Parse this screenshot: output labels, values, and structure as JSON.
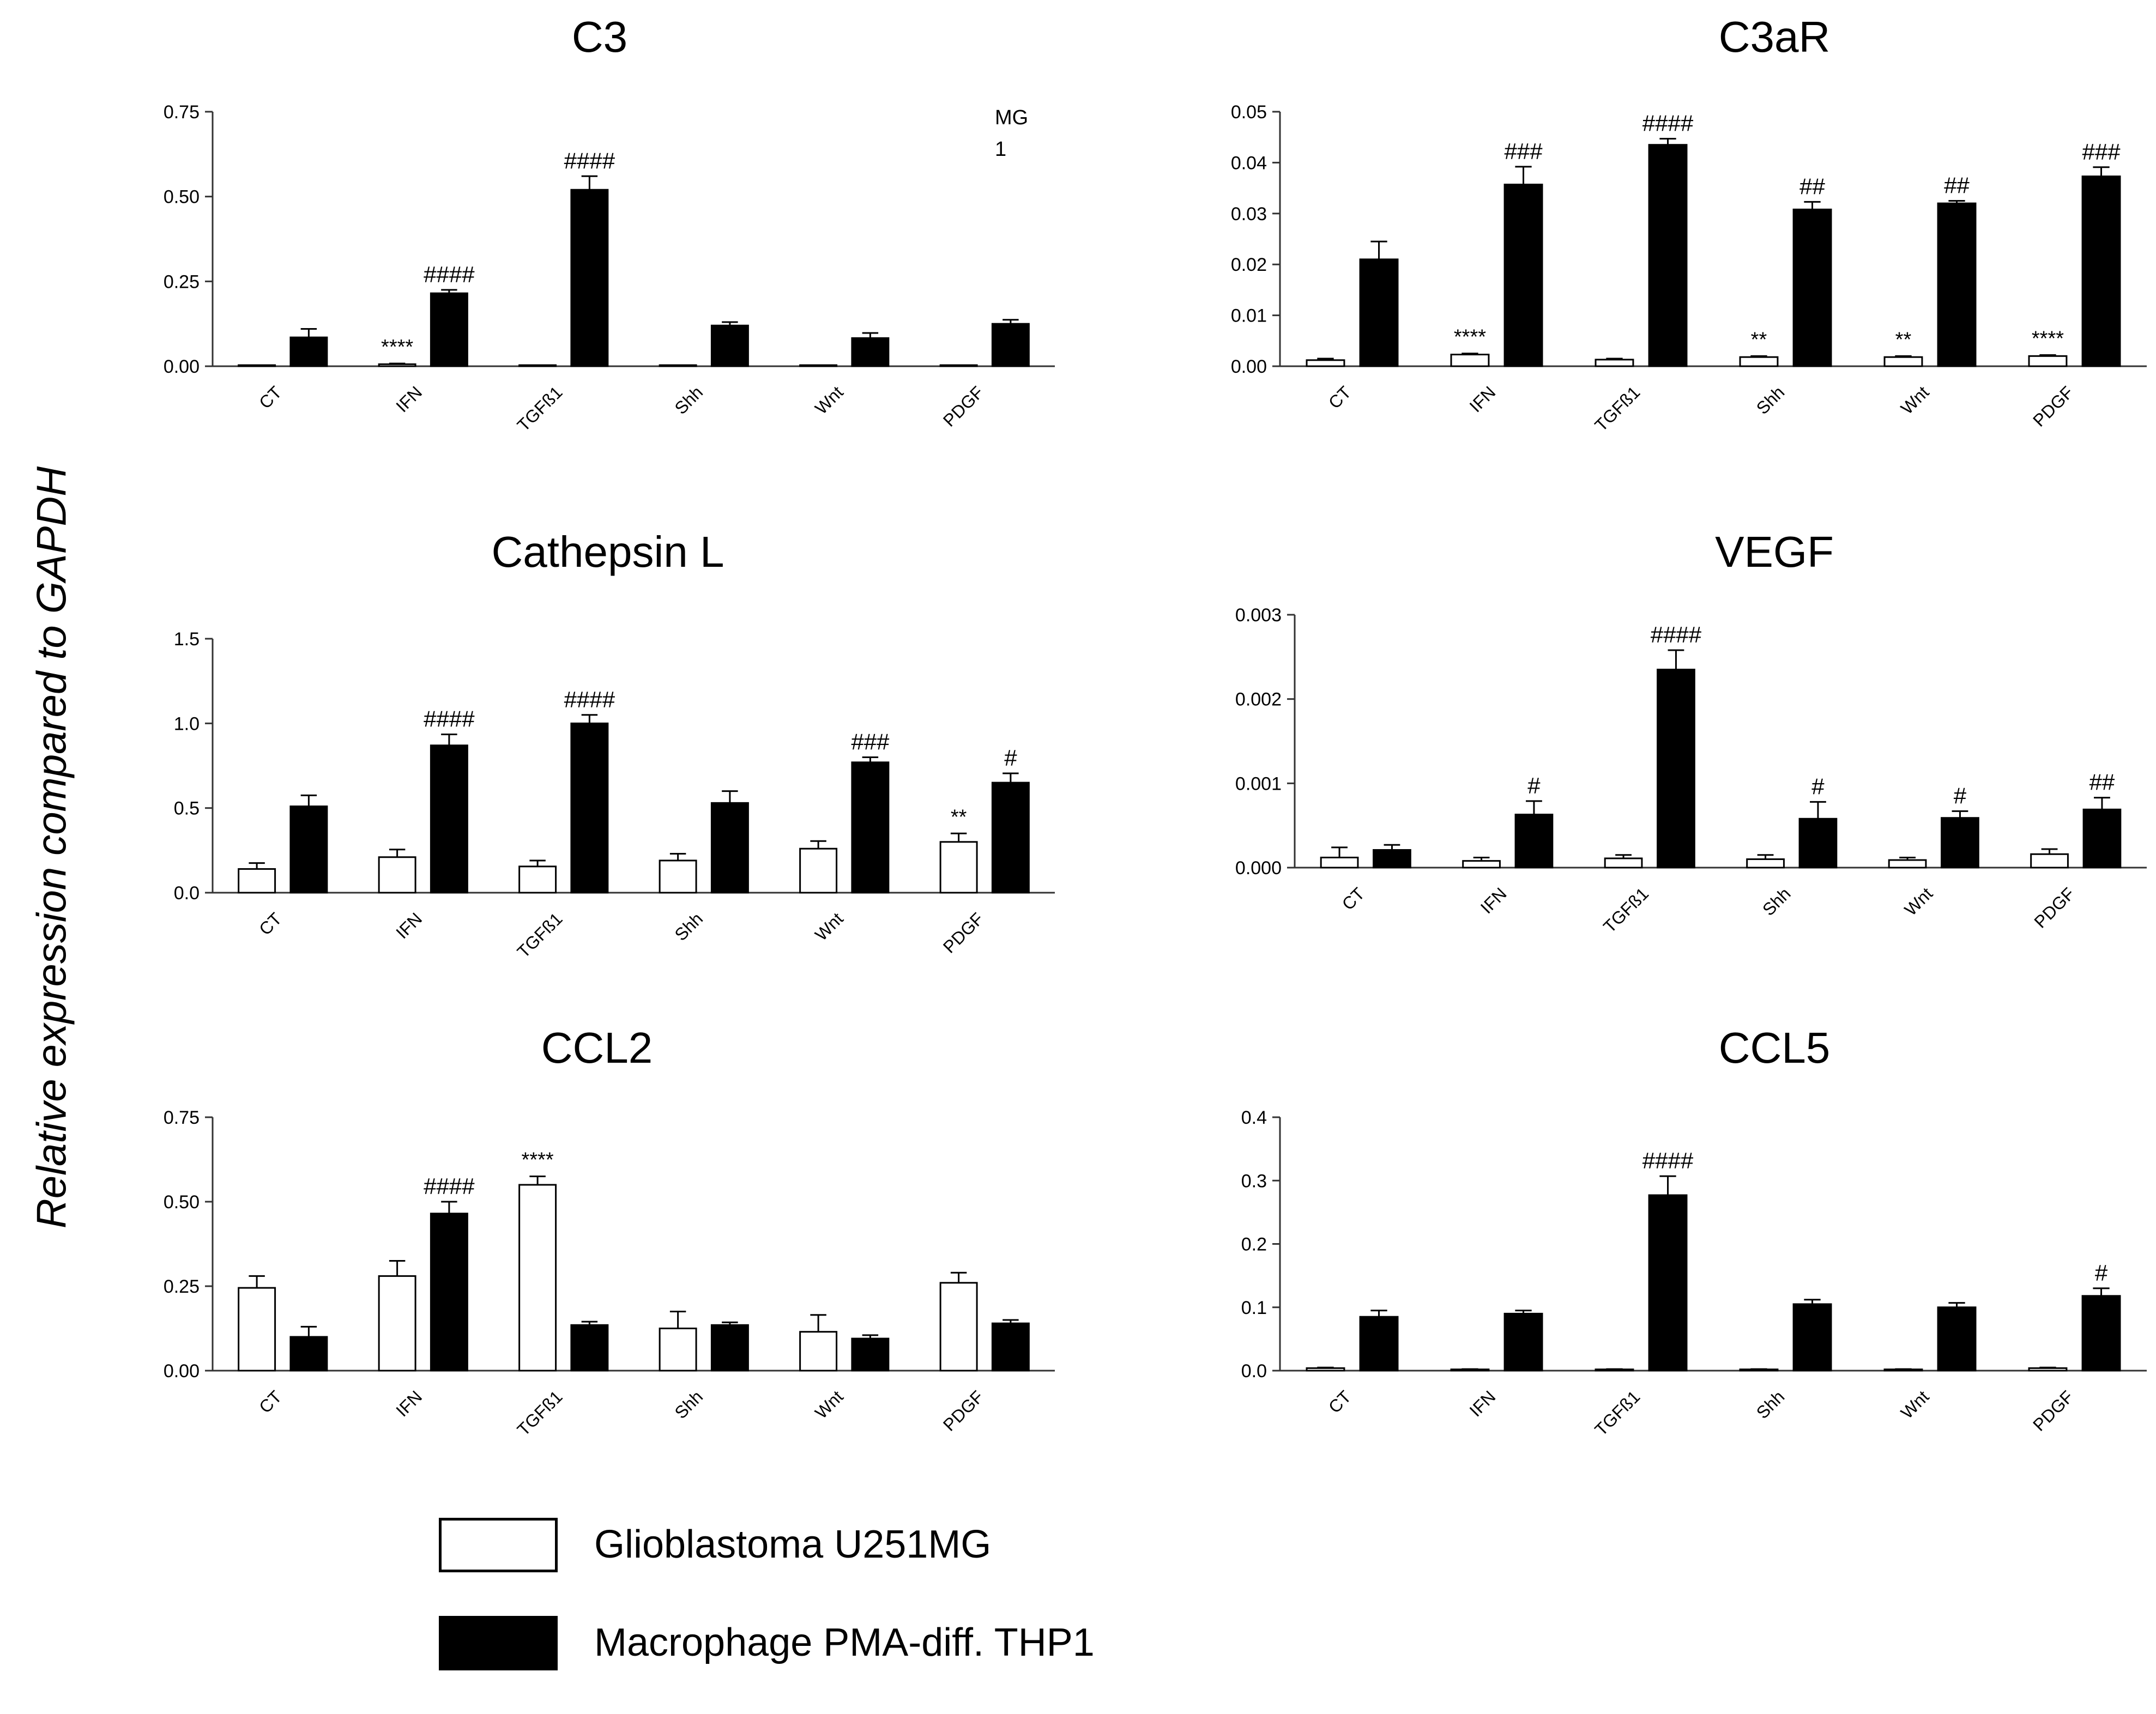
{
  "figure": {
    "ylabel": "Relative expression compared to GAPDH",
    "legend": [
      {
        "label": "Glioblastoma U251MG",
        "color": "#ffffff"
      },
      {
        "label": "Macrophage PMA-diff. THP1",
        "color": "#000000"
      }
    ]
  },
  "chart_data": [
    {
      "type": "bar",
      "title": "C3",
      "categories": [
        "CT",
        "IFN",
        "TGFß1",
        "Shh",
        "Wnt",
        "PDGF"
      ],
      "ylim": [
        0,
        0.75
      ],
      "yticks": [
        "0.00",
        "0.25",
        "0.50",
        "0.75"
      ],
      "yticks_values": [
        0,
        0.25,
        0.5,
        0.75
      ],
      "annotation": [
        "MG",
        "1"
      ],
      "series": [
        {
          "name": "Glioblastoma U251MG",
          "values": [
            0.002,
            0.006,
            0.002,
            0.002,
            0.002,
            0.002
          ],
          "errors": [
            0.0,
            0.002,
            0.0,
            0.0,
            0.0,
            0.0
          ],
          "labels": [
            "",
            "****",
            "",
            "",
            "",
            ""
          ]
        },
        {
          "name": "Macrophage PMA-diff. THP1",
          "values": [
            0.085,
            0.215,
            0.52,
            0.12,
            0.083,
            0.125
          ],
          "errors": [
            0.025,
            0.01,
            0.04,
            0.01,
            0.015,
            0.012
          ],
          "labels": [
            "",
            "####",
            "####",
            "",
            "",
            ""
          ]
        }
      ]
    },
    {
      "type": "bar",
      "title": "C3aR",
      "categories": [
        "CT",
        "IFN",
        "TGFß1",
        "Shh",
        "Wnt",
        "PDGF"
      ],
      "ylim": [
        0,
        0.05
      ],
      "yticks": [
        "0.00",
        "0.01",
        "0.02",
        "0.03",
        "0.04",
        "0.05"
      ],
      "yticks_values": [
        0,
        0.01,
        0.02,
        0.03,
        0.04,
        0.05
      ],
      "series": [
        {
          "name": "Glioblastoma U251MG",
          "values": [
            0.0012,
            0.0023,
            0.0013,
            0.0018,
            0.0018,
            0.002
          ],
          "errors": [
            0.0003,
            0.0002,
            0.0002,
            0.0002,
            0.0002,
            0.0002
          ],
          "labels": [
            "",
            "****",
            "",
            "**",
            "**",
            "****"
          ]
        },
        {
          "name": "Macrophage PMA-diff. THP1",
          "values": [
            0.021,
            0.0357,
            0.0435,
            0.0308,
            0.032,
            0.0373
          ],
          "errors": [
            0.0035,
            0.0035,
            0.0012,
            0.0015,
            0.0005,
            0.0018
          ],
          "labels": [
            "",
            "###",
            "####",
            "##",
            "##",
            "###"
          ]
        }
      ]
    },
    {
      "type": "bar",
      "title": "Cathepsin L",
      "categories": [
        "CT",
        "IFN",
        "TGFß1",
        "Shh",
        "Wnt",
        "PDGF"
      ],
      "ylim": [
        0,
        1.5
      ],
      "yticks": [
        "0.0",
        "0.5",
        "1.0",
        "1.5"
      ],
      "yticks_values": [
        0,
        0.5,
        1.0,
        1.5
      ],
      "series": [
        {
          "name": "Glioblastoma U251MG",
          "values": [
            0.14,
            0.21,
            0.155,
            0.19,
            0.26,
            0.3
          ],
          "errors": [
            0.035,
            0.045,
            0.035,
            0.04,
            0.045,
            0.05
          ],
          "labels": [
            "",
            "",
            "",
            "",
            "",
            "**"
          ]
        },
        {
          "name": "Macrophage PMA-diff. THP1",
          "values": [
            0.51,
            0.87,
            1.0,
            0.53,
            0.77,
            0.65
          ],
          "errors": [
            0.065,
            0.065,
            0.05,
            0.07,
            0.03,
            0.055
          ],
          "labels": [
            "",
            "####",
            "####",
            "",
            "###",
            "#"
          ]
        }
      ]
    },
    {
      "type": "bar",
      "title": "VEGF",
      "categories": [
        "CT",
        "IFN",
        "TGFß1",
        "Shh",
        "Wnt",
        "PDGF"
      ],
      "ylim": [
        0,
        0.003
      ],
      "yticks": [
        "0.000",
        "0.001",
        "0.002",
        "0.003"
      ],
      "yticks_values": [
        0,
        0.001,
        0.002,
        0.003
      ],
      "series": [
        {
          "name": "Glioblastoma U251MG",
          "values": [
            0.00012,
            8e-05,
            0.00011,
            0.0001,
            9e-05,
            0.00016
          ],
          "errors": [
            0.00012,
            4e-05,
            4e-05,
            5e-05,
            3e-05,
            6e-05
          ],
          "labels": [
            "",
            "",
            "",
            "",
            "",
            ""
          ]
        },
        {
          "name": "Macrophage PMA-diff. THP1",
          "values": [
            0.00021,
            0.00063,
            0.00235,
            0.00058,
            0.00059,
            0.00069
          ],
          "errors": [
            6e-05,
            0.00016,
            0.00023,
            0.0002,
            8e-05,
            0.00014
          ],
          "labels": [
            "",
            "#",
            "####",
            "#",
            "#",
            "##"
          ]
        }
      ]
    },
    {
      "type": "bar",
      "title": "CCL2",
      "categories": [
        "CT",
        "IFN",
        "TGFß1",
        "Shh",
        "Wnt",
        "PDGF"
      ],
      "ylim": [
        0,
        0.75
      ],
      "yticks": [
        "0.00",
        "0.25",
        "0.50",
        "0.75"
      ],
      "yticks_values": [
        0,
        0.25,
        0.5,
        0.75
      ],
      "series": [
        {
          "name": "Glioblastoma U251MG",
          "values": [
            0.245,
            0.28,
            0.55,
            0.125,
            0.115,
            0.26
          ],
          "errors": [
            0.035,
            0.045,
            0.025,
            0.05,
            0.05,
            0.03
          ],
          "labels": [
            "",
            "",
            "****",
            "",
            "",
            ""
          ]
        },
        {
          "name": "Macrophage PMA-diff. THP1",
          "values": [
            0.1,
            0.465,
            0.135,
            0.135,
            0.095,
            0.14
          ],
          "errors": [
            0.03,
            0.035,
            0.01,
            0.008,
            0.01,
            0.01
          ],
          "labels": [
            "",
            "####",
            "",
            "",
            "",
            ""
          ]
        }
      ]
    },
    {
      "type": "bar",
      "title": "CCL5",
      "categories": [
        "CT",
        "IFN",
        "TGFß1",
        "Shh",
        "Wnt",
        "PDGF"
      ],
      "ylim": [
        0,
        0.4
      ],
      "yticks": [
        "0.0",
        "0.1",
        "0.2",
        "0.3",
        "0.4"
      ],
      "yticks_values": [
        0,
        0.1,
        0.2,
        0.3,
        0.4
      ],
      "series": [
        {
          "name": "Glioblastoma U251MG",
          "values": [
            0.004,
            0.002,
            0.002,
            0.002,
            0.002,
            0.004
          ],
          "errors": [
            0.001,
            0.0005,
            0.0005,
            0.0005,
            0.0005,
            0.001
          ],
          "labels": [
            "",
            "",
            "",
            "",
            "",
            ""
          ]
        },
        {
          "name": "Macrophage PMA-diff. THP1",
          "values": [
            0.085,
            0.09,
            0.277,
            0.105,
            0.1,
            0.118
          ],
          "errors": [
            0.01,
            0.005,
            0.03,
            0.007,
            0.007,
            0.012
          ],
          "labels": [
            "",
            "",
            "####",
            "",
            "",
            "#"
          ]
        }
      ]
    }
  ]
}
